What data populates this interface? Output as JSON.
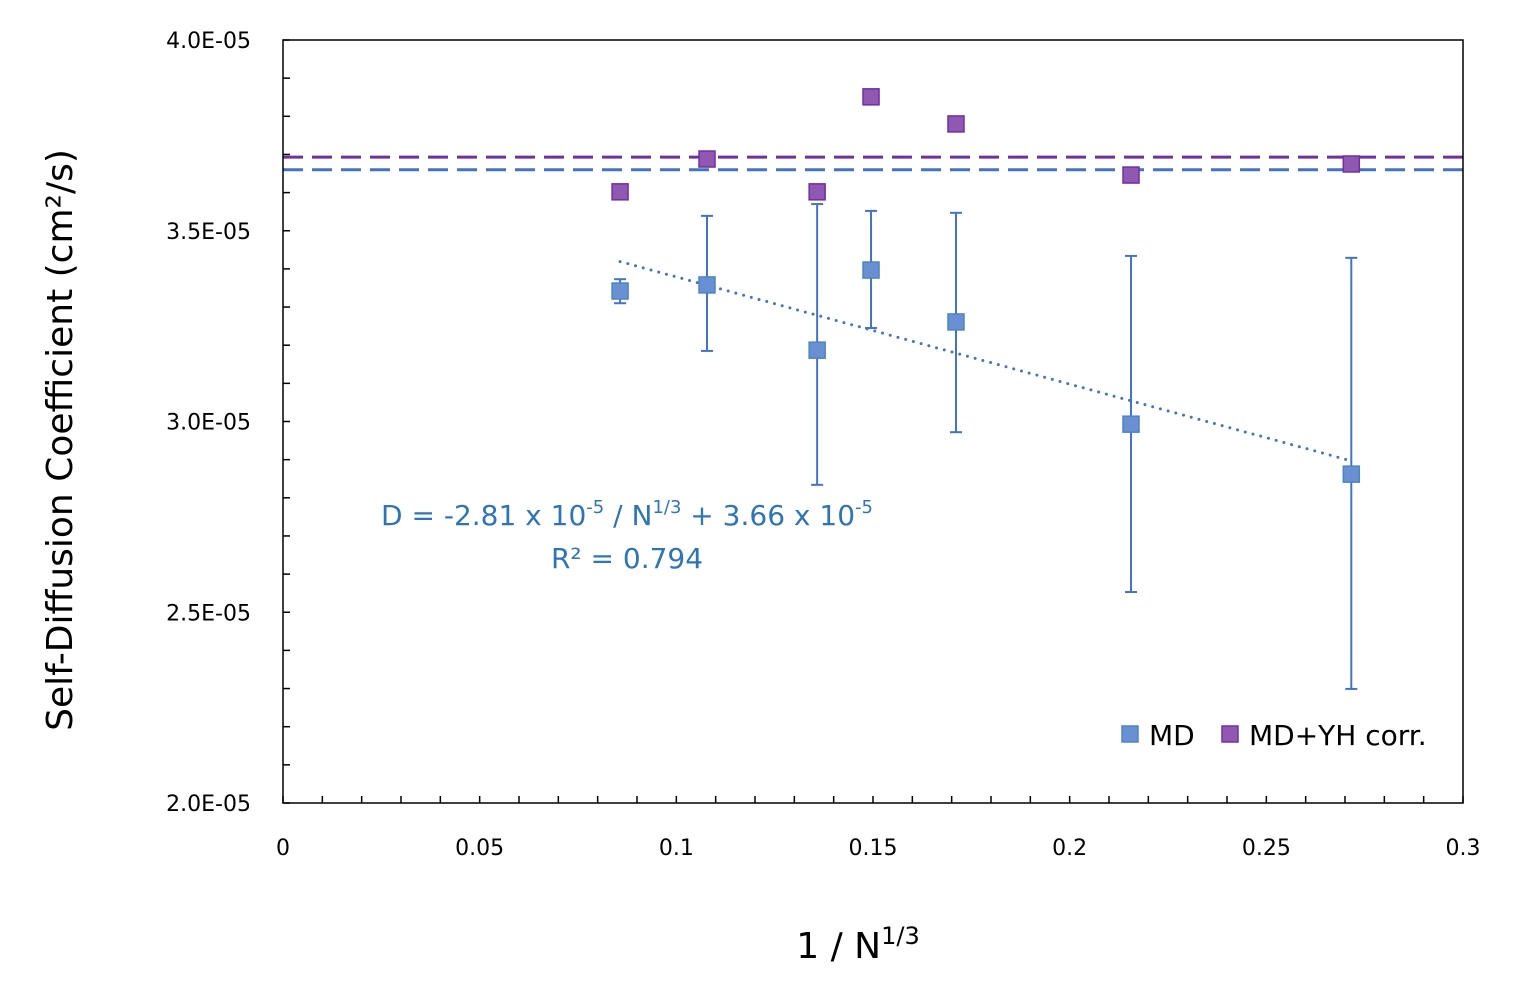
{
  "chart_data": {
    "type": "scatter",
    "xlabel": "1 / N",
    "xlabel_sup": "1/3",
    "ylabel": "Self-Diffusion Coefficient (cm²/s)",
    "xlim": [
      0,
      0.3
    ],
    "ylim": [
      2e-05,
      4e-05
    ],
    "x_ticks": [
      0,
      0.05,
      0.1,
      0.15,
      0.2,
      0.25,
      0.3
    ],
    "x_tick_labels": [
      "0",
      "0.05",
      "0.1",
      "0.15",
      "0.2",
      "0.25",
      "0.3"
    ],
    "y_ticks": [
      2e-05,
      2.5e-05,
      3e-05,
      3.5e-05,
      4e-05
    ],
    "y_tick_labels": [
      "2.0E-05",
      "2.5E-05",
      "3.0E-05",
      "3.5E-05",
      "4.0E-05"
    ],
    "x_minor_step": 0.01,
    "y_minor_step": 1e-06,
    "grid": false,
    "legend_position": "bottom-right",
    "series": [
      {
        "name": "MD",
        "color": "#4472C4",
        "marker": "square",
        "x": [
          0.0857,
          0.1078,
          0.1358,
          0.1495,
          0.1711,
          0.2156,
          0.2716
        ],
        "y": [
          3.342e-05,
          3.358e-05,
          3.187e-05,
          3.397e-05,
          3.261e-05,
          2.993e-05,
          2.862e-05
        ],
        "error_upper": [
          3.373e-05,
          3.539e-05,
          3.57e-05,
          3.552e-05,
          3.547e-05,
          3.434e-05,
          3.429e-05
        ],
        "error_lower": [
          3.31e-05,
          3.185e-05,
          2.834e-05,
          3.245e-05,
          2.972e-05,
          2.553e-05,
          2.299e-05
        ]
      },
      {
        "name": "MD+YH corr.",
        "color": "#7030A0",
        "marker": "square",
        "x": [
          0.0857,
          0.1078,
          0.1358,
          0.1495,
          0.1711,
          0.2156,
          0.2716
        ],
        "y": [
          3.602e-05,
          3.688e-05,
          3.602e-05,
          3.851e-05,
          3.78e-05,
          3.646e-05,
          3.675e-05
        ]
      }
    ],
    "trendline": {
      "series": "MD",
      "style": "dotted",
      "color": "#4472C4",
      "slope": -2.81e-05,
      "intercept": 3.66e-05,
      "x_range": [
        0.0857,
        0.2716
      ],
      "equation_parts": [
        "D = -2.81 x 10",
        "-5",
        " / N",
        "1/3",
        " + 3.66 x 10",
        "-5"
      ],
      "r2_label": "R² = 0.794"
    },
    "reference_lines": [
      {
        "y": 3.693e-05,
        "color": "#7030A0",
        "style": "dashed"
      },
      {
        "y": 3.66e-05,
        "color": "#4472C4",
        "style": "dashed"
      }
    ]
  }
}
